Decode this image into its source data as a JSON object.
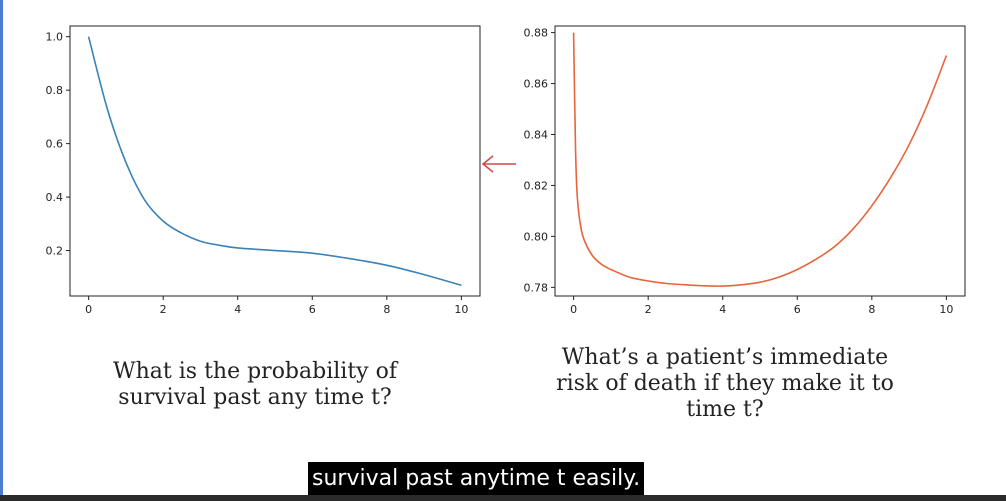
{
  "colors": {
    "survival": "#3b82b6",
    "hazard": "#e8643a",
    "arrow": "#d14a4a",
    "subtitle_bg": "#000000"
  },
  "arrow_icon": "arrow-left-icon",
  "chart_data": [
    {
      "type": "line",
      "title": "",
      "xlabel": "",
      "ylabel": "",
      "xlim": [
        -0.5,
        10.5
      ],
      "ylim": [
        0.03,
        1.04
      ],
      "xticks": [
        0,
        2,
        4,
        6,
        8,
        10
      ],
      "yticks": [
        0.2,
        0.4,
        0.6,
        0.8,
        1.0
      ],
      "xtick_labels": [
        "0",
        "2",
        "4",
        "6",
        "8",
        "10"
      ],
      "ytick_labels": [
        "0.2",
        "0.4",
        "0.6",
        "0.8",
        "1.0"
      ],
      "grid": false,
      "series": [
        {
          "x": [
            0,
            0.5,
            1,
            1.5,
            2,
            2.5,
            3,
            3.5,
            4,
            5,
            6,
            7,
            8,
            9,
            10
          ],
          "y": [
            1.0,
            0.73,
            0.53,
            0.39,
            0.31,
            0.265,
            0.235,
            0.22,
            0.21,
            0.2,
            0.19,
            0.17,
            0.145,
            0.11,
            0.07
          ]
        }
      ]
    },
    {
      "type": "line",
      "title": "",
      "xlabel": "",
      "ylabel": "",
      "xlim": [
        -0.5,
        10.5
      ],
      "ylim": [
        0.7766,
        0.8826
      ],
      "xticks": [
        0,
        2,
        4,
        6,
        8,
        10
      ],
      "yticks": [
        0.78,
        0.8,
        0.82,
        0.84,
        0.86,
        0.88
      ],
      "xtick_labels": [
        "0",
        "2",
        "4",
        "6",
        "8",
        "10"
      ],
      "ytick_labels": [
        "0.78",
        "0.80",
        "0.82",
        "0.84",
        "0.86",
        "0.88"
      ],
      "grid": false,
      "series": [
        {
          "x": [
            0,
            0.05,
            0.1,
            0.2,
            0.3,
            0.5,
            0.75,
            1,
            1.5,
            2,
            2.5,
            3,
            3.5,
            4,
            4.5,
            5,
            5.5,
            6,
            6.5,
            7,
            7.5,
            8,
            8.5,
            9,
            9.5,
            10
          ],
          "y": [
            0.88,
            0.835,
            0.815,
            0.803,
            0.798,
            0.7925,
            0.789,
            0.787,
            0.784,
            0.7825,
            0.7815,
            0.781,
            0.7806,
            0.7805,
            0.781,
            0.782,
            0.784,
            0.787,
            0.791,
            0.796,
            0.803,
            0.812,
            0.823,
            0.836,
            0.852,
            0.871
          ]
        }
      ]
    }
  ],
  "captions": {
    "left_line1": "What is the probability of",
    "left_line2": "survival past any time t?",
    "right_line1": "What’s a patient’s immediate",
    "right_line2": "risk of death if they make it to",
    "right_line3": "time t?"
  },
  "subtitle": "survival past anytime t easily."
}
